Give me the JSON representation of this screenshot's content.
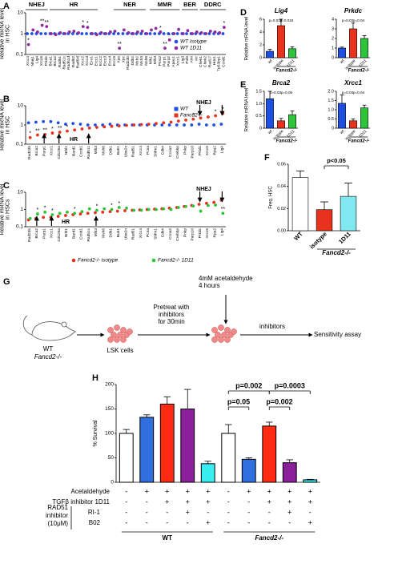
{
  "chart_data": [
    {
      "type": "dotplot",
      "panel": "A",
      "ylabel": [
        "Relative mRNA level",
        "in HSC"
      ],
      "log": true,
      "ylim": [
        0.1,
        10
      ],
      "yticks": [
        0.1,
        1,
        10
      ],
      "groups": [
        "NHEJ",
        "HR",
        "NER",
        "MMR",
        "BER",
        "DDRC"
      ],
      "legend": "lower right",
      "categories": [
        "Xrcc4",
        "Nhej1",
        "Lig4",
        "Xrcc6",
        "Prkdc",
        "Brca1",
        "Brca2",
        "Rad51",
        "Rad51c",
        "Rad51d",
        "Rad52",
        "Rad54l",
        "Xrcc2",
        "Xrcc3",
        "Exo1",
        "Ercc1",
        "Ercc2",
        "Ercc3",
        "Ercc4",
        "Ercc5",
        "Xpa",
        "Xpc",
        "Rad23b",
        "Ddb2",
        "Msh2",
        "Msh3",
        "Msh6",
        "Mlh1",
        "Mlh3",
        "Pms2",
        "Parp1",
        "Parp2",
        "Apex1",
        "Xrcc1",
        "Lig3",
        "Polb",
        "Atm",
        "Atr",
        "Chek1",
        "Chek2",
        "Rad17",
        "Hus1",
        "Tp53bp1",
        "Ccnd1"
      ],
      "series": [
        {
          "name": "WT Isotype",
          "color": "#1f4fe0",
          "values": [
            1,
            1,
            1,
            1,
            1,
            1,
            1,
            1,
            1,
            1,
            1,
            1,
            1,
            1,
            1,
            1,
            1,
            1,
            1,
            1,
            1,
            1,
            1,
            1,
            1,
            1,
            1,
            1,
            1,
            1,
            1,
            1,
            1,
            1,
            1,
            1,
            1,
            1,
            1,
            1,
            1,
            1,
            1,
            1
          ]
        },
        {
          "name": "WT 1D11",
          "color": "#8e2a9e",
          "values": [
            0.3,
            1.5,
            1.2,
            2.5,
            2.2,
            1.0,
            0.9,
            1.1,
            1.0,
            1.2,
            1.3,
            1.1,
            2.2,
            2.0,
            1.0,
            0.9,
            1.1,
            1.0,
            1.2,
            1.3,
            0.2,
            1.5,
            1.1,
            1.0,
            1.2,
            1.3,
            1.0,
            1.5,
            1.8,
            1.2,
            0.2,
            0.5,
            1.0,
            1.6,
            1.0,
            1.4,
            1.0,
            1.2,
            1.1,
            1.0,
            1.3,
            1.2,
            1.1,
            2.0
          ],
          "significance": [
            "*",
            null,
            null,
            "**",
            "**",
            null,
            null,
            null,
            null,
            null,
            null,
            null,
            "*",
            "*",
            null,
            null,
            null,
            null,
            null,
            null,
            "**",
            null,
            null,
            null,
            null,
            null,
            null,
            null,
            null,
            "*",
            "**",
            "*",
            null,
            null,
            null,
            null,
            null,
            null,
            null,
            null,
            null,
            null,
            null,
            "*"
          ]
        }
      ]
    },
    {
      "type": "dotplot",
      "panel": "B",
      "ylabel": [
        "Relative mRNA level",
        "in HSC"
      ],
      "log": true,
      "ylim": [
        0.1,
        10
      ],
      "yticks": [
        0.1,
        1,
        10
      ],
      "groups": [
        "HR",
        "NHEJ"
      ],
      "legend": "upper right",
      "categories": [
        "Rad23b",
        "Brca2",
        "Parp1",
        "Xrcc1",
        "Cdc25a",
        "Nthl1",
        "Bard1",
        "Ccnb1",
        "Rad51c",
        "Mlh3",
        "Msh6",
        "Ddb1",
        "Bub1",
        "Ube2n",
        "Rad51",
        "Xrcc4",
        "Pcna",
        "Shfm1",
        "Cdk4",
        "Ccna2",
        "Crebbp",
        "Pnkp",
        "Parp10",
        "Prkdc",
        "Xrcc5",
        "Rpa2",
        "Lig4"
      ],
      "series": [
        {
          "name": "WT",
          "color": "#1f4fe0",
          "values": [
            1.3,
            1.4,
            1.5,
            1.5,
            1.3,
            1.1,
            1.2,
            1.1,
            1.0,
            1.0,
            1.0,
            1.1,
            1.0,
            1.0,
            1.0,
            1.0,
            1.0,
            1.0,
            1.0,
            1.0,
            1.0,
            1.0,
            1.0,
            1.1,
            1.0,
            1.0,
            1.1
          ]
        },
        {
          "name": "Fancd2-/-",
          "color": "#e8321e",
          "values": [
            0.22,
            0.3,
            0.32,
            0.38,
            0.42,
            0.48,
            0.55,
            0.62,
            0.7,
            0.75,
            0.8,
            0.85,
            0.9,
            0.95,
            1.0,
            1.05,
            1.1,
            1.2,
            1.3,
            1.4,
            1.6,
            1.8,
            2.0,
            2.3,
            2.6,
            3.0,
            4.0
          ],
          "significance": [
            "*",
            "**",
            "**",
            "*",
            "**",
            "*",
            null,
            null,
            null,
            null,
            null,
            null,
            null,
            null,
            null,
            null,
            null,
            null,
            null,
            null,
            null,
            null,
            "*",
            "*",
            null,
            "*",
            "*"
          ]
        }
      ]
    },
    {
      "type": "dotplot",
      "panel": "C",
      "ylabel": [
        "Relative mRNA level",
        "in HSCs"
      ],
      "log": true,
      "ylim": [
        0.1,
        10
      ],
      "yticks": [
        0.1,
        1,
        10
      ],
      "groups": [
        "HR",
        "NHEJ"
      ],
      "legend": "below",
      "categories": [
        "Rad23b",
        "Brca2",
        "Parp1",
        "Xrcc1",
        "Cdc25a",
        "Nthl1",
        "Bard1",
        "Ccnb1",
        "Rad51c",
        "Mlh3",
        "Msh6",
        "Ddb1",
        "Bub1",
        "Ube2n",
        "Rad51",
        "Xrcc4",
        "Pcna",
        "Shfm1",
        "Cdk4",
        "Ccna2",
        "Crebbp",
        "Pnkp",
        "Parp10",
        "Prkdc",
        "Xrcc5",
        "Rpa2",
        "Lig4"
      ],
      "series": [
        {
          "name": "Fancd2-/- isotype",
          "color": "#e8321e",
          "values": [
            0.25,
            0.3,
            0.35,
            0.35,
            0.4,
            0.45,
            0.5,
            0.55,
            0.6,
            0.65,
            0.7,
            0.75,
            0.8,
            0.85,
            0.9,
            0.95,
            1.0,
            1.05,
            1.1,
            1.2,
            1.3,
            1.5,
            1.7,
            2.0,
            2.3,
            2.6,
            3.5
          ]
        },
        {
          "name": "Fancd2-/- 1D11",
          "color": "#2ec43a",
          "values": [
            0.3,
            0.55,
            0.7,
            0.5,
            0.6,
            0.7,
            0.6,
            0.75,
            1.1,
            0.9,
            1.1,
            1.0,
            1.3,
            1.2,
            0.9,
            0.9,
            1.0,
            1.0,
            1.1,
            1.0,
            1.3,
            1.5,
            1.6,
            0.8,
            1.7,
            1.8,
            0.6
          ],
          "significance": [
            null,
            "*",
            "*",
            "*",
            null,
            null,
            "*",
            null,
            null,
            "*",
            null,
            "*",
            "*",
            null,
            null,
            null,
            null,
            null,
            null,
            null,
            null,
            null,
            null,
            null,
            null,
            null,
            "**"
          ]
        }
      ]
    },
    {
      "type": "bar",
      "panel": "D",
      "title": "Lig4",
      "ylabel": [
        "Relative mRNA level"
      ],
      "categories": [
        "wt",
        "isotype",
        "1D11"
      ],
      "values": [
        1.0,
        5.0,
        1.4
      ],
      "errors": [
        0.3,
        1.0,
        0.3
      ],
      "colors": [
        "#1f4fe0",
        "#e8321e",
        "#2ec43a"
      ],
      "ylim": [
        0,
        6
      ],
      "yticks": [
        0,
        2,
        4,
        6
      ],
      "comparisons": [
        "p=0.016",
        "p=0.016"
      ],
      "group_label": "Fancd2-/-"
    },
    {
      "type": "bar",
      "title": "Prkdc",
      "categories": [
        "wt",
        "isotype",
        "1D11"
      ],
      "values": [
        1.0,
        3.0,
        2.0
      ],
      "errors": [
        0.1,
        0.6,
        0.3
      ],
      "colors": [
        "#1f4fe0",
        "#e8321e",
        "#2ec43a"
      ],
      "ylim": [
        0,
        4
      ],
      "yticks": [
        0,
        1,
        2,
        3,
        4
      ],
      "comparisons": [
        "p=0.03",
        "p=0.04"
      ],
      "group_label": "Fancd2-/-"
    },
    {
      "type": "bar",
      "panel": "E",
      "title": "Brca2",
      "ylabel": [
        "Relative mRNA level"
      ],
      "categories": [
        "wt",
        "isotype",
        "1D11"
      ],
      "values": [
        1.2,
        0.3,
        0.55
      ],
      "errors": [
        0.3,
        0.1,
        0.15
      ],
      "colors": [
        "#1f4fe0",
        "#e8321e",
        "#2ec43a"
      ],
      "ylim": [
        0,
        1.5
      ],
      "yticks": [
        0,
        0.5,
        {
          "value": 1,
          "label": "1.0"
        },
        1.5
      ],
      "comparisons": [
        "p=0.03",
        "p=0.05"
      ],
      "group_label": "Fancd2-/-"
    },
    {
      "type": "bar",
      "title": "Xrcc1",
      "categories": [
        "wt",
        "isotype",
        "1D11"
      ],
      "values": [
        1.35,
        0.4,
        1.1
      ],
      "errors": [
        0.45,
        0.1,
        0.15
      ],
      "colors": [
        "#1f4fe0",
        "#e8321e",
        "#2ec43a"
      ],
      "ylim": [
        0,
        2
      ],
      "yticks": [
        0,
        0.5,
        {
          "value": 1,
          "label": "1.0"
        },
        1.5,
        {
          "value": 2,
          "label": "2.0"
        }
      ],
      "comparisons": [
        "p=0.03",
        "p=0.04"
      ],
      "group_label": "Fancd2-/-"
    },
    {
      "type": "bar",
      "panel": "F",
      "ylabel": [
        "Freq. HSC"
      ],
      "categories": [
        "WT",
        "isotype",
        "1D11"
      ],
      "values": [
        0.048,
        0.019,
        0.031
      ],
      "errors": [
        0.006,
        0.007,
        0.012
      ],
      "colors": [
        "#ffffff",
        "#e8321e",
        "#7fe8f0"
      ],
      "ylim": [
        0,
        0.06
      ],
      "yticks": [
        {
          "value": 0,
          "label": "0.00"
        },
        0.02,
        0.04,
        0.06
      ],
      "comparisons": [
        "p<0.05"
      ],
      "group_label": "Fancd2-/-"
    },
    {
      "type": "bar",
      "panel": "H",
      "ylabel": [
        "% Survival"
      ],
      "values": [
        100,
        133,
        160,
        150,
        38,
        100,
        47,
        115,
        40,
        5
      ],
      "errors": [
        8,
        5,
        15,
        40,
        5,
        18,
        3,
        8,
        6,
        1
      ],
      "colors": [
        "#ffffff",
        "#2f6fe0",
        "#ff2a12",
        "#8a1f9a",
        "#38eef0",
        "#ffffff",
        "#2f6fe0",
        "#ff2a12",
        "#8a1f9a",
        "#38eef0"
      ],
      "ylim": [
        0,
        200
      ],
      "yticks": [
        0,
        50,
        100,
        150,
        200
      ],
      "comparisons": [
        "p=0.002",
        "p=0.0003",
        "p=0.05",
        "p=0.002"
      ],
      "rows": [
        {
          "label": "Acetaldehyde",
          "cells": [
            "-",
            "+",
            "+",
            "+",
            "+",
            "-",
            "+",
            "+",
            "+",
            "+"
          ]
        },
        {
          "label": "TGFβ inhibitor 1D11",
          "cells": [
            "-",
            "-",
            "+",
            "+",
            "+",
            "-",
            "-",
            "+",
            "+",
            "+"
          ]
        },
        {
          "label": "RI-1",
          "cells": [
            "-",
            "-",
            "-",
            "+",
            "-",
            "-",
            "-",
            "-",
            "+",
            "-"
          ]
        },
        {
          "label": "B02",
          "cells": [
            "-",
            "-",
            "-",
            "-",
            "+",
            "-",
            "-",
            "-",
            "-",
            "+"
          ]
        }
      ],
      "row_group_label": [
        "RAD51",
        "inhibitor",
        "(10μM)"
      ],
      "groups": [
        "WT",
        "Fancd2-/-"
      ]
    }
  ],
  "diagram": {
    "panel": "G",
    "mouse_labels": [
      "WT",
      "Fancd2-/-"
    ],
    "cells": "LSK cells",
    "pretreat": [
      "Pretreat with",
      "inhibitors",
      "for 30min"
    ],
    "acetaldehyde": [
      "4mM acetaldehyde",
      "4 hours"
    ],
    "inhibitors": "inhibitors",
    "assay": "Sensitivity assay"
  }
}
